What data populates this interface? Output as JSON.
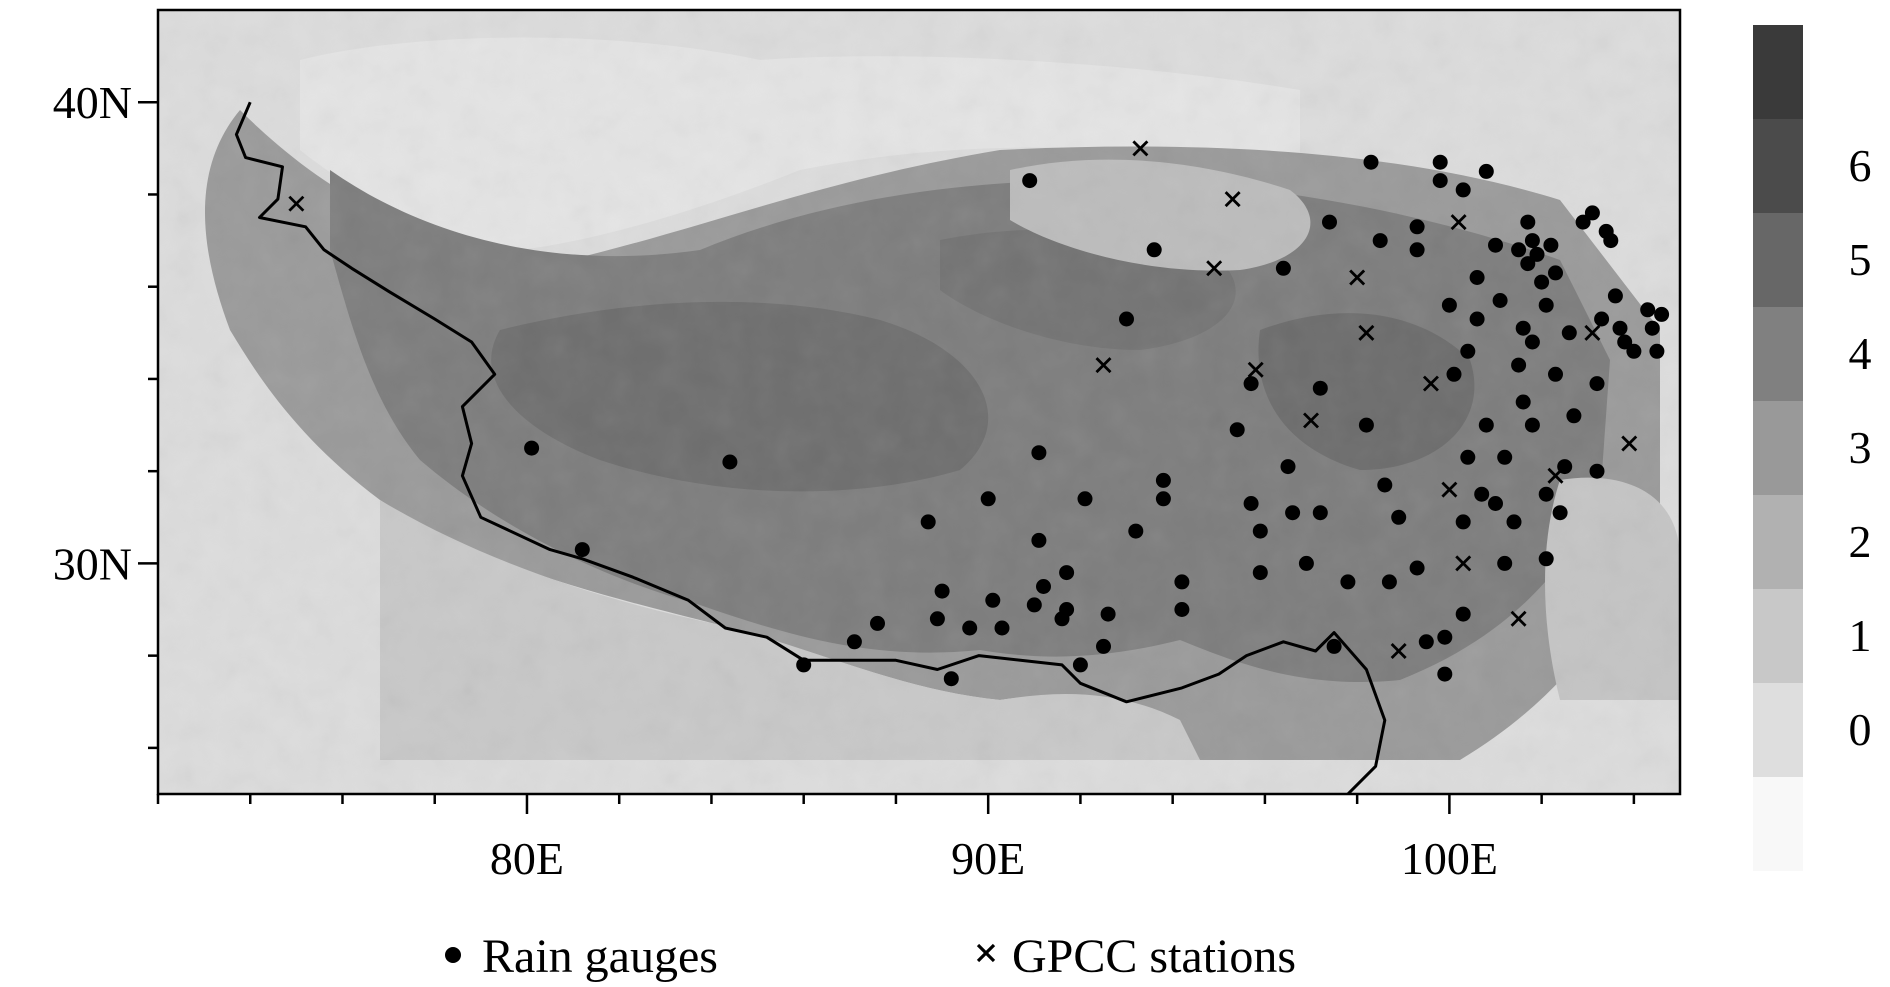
{
  "map": {
    "bounds": {
      "lon": [
        72,
        105
      ],
      "lat": [
        25,
        42
      ]
    },
    "lat_ticks": [
      {
        "value": 30,
        "label": "30N"
      },
      {
        "value": 40,
        "label": "40N"
      }
    ],
    "lat_minor_ticks": [
      26,
      28,
      32,
      34,
      36,
      38
    ],
    "lon_ticks": [
      {
        "value": 80,
        "label": "80E"
      },
      {
        "value": 90,
        "label": "90E"
      },
      {
        "value": 100,
        "label": "100E"
      }
    ],
    "lon_minor_ticks": [
      72,
      74,
      76,
      78,
      82,
      84,
      86,
      88,
      92,
      94,
      96,
      98,
      102,
      104
    ],
    "boundary": [
      [
        74.0,
        40.0
      ],
      [
        73.7,
        39.3
      ],
      [
        73.9,
        38.8
      ],
      [
        74.7,
        38.6
      ],
      [
        74.6,
        37.9
      ],
      [
        74.2,
        37.5
      ],
      [
        75.2,
        37.3
      ],
      [
        75.6,
        36.8
      ],
      [
        76.2,
        36.4
      ],
      [
        77.0,
        35.9
      ],
      [
        78.0,
        35.3
      ],
      [
        78.8,
        34.8
      ],
      [
        79.3,
        34.1
      ],
      [
        78.6,
        33.4
      ],
      [
        78.8,
        32.6
      ],
      [
        78.6,
        31.9
      ],
      [
        79.0,
        31.0
      ],
      [
        80.5,
        30.3
      ],
      [
        81.2,
        30.1
      ],
      [
        82.3,
        29.7
      ],
      [
        83.5,
        29.2
      ],
      [
        84.3,
        28.6
      ],
      [
        85.2,
        28.4
      ],
      [
        86.0,
        27.9
      ],
      [
        87.0,
        27.9
      ],
      [
        88.0,
        27.9
      ],
      [
        88.9,
        27.7
      ],
      [
        89.8,
        28.0
      ],
      [
        90.7,
        27.9
      ],
      [
        91.6,
        27.8
      ],
      [
        92.0,
        27.4
      ],
      [
        93.0,
        27.0
      ],
      [
        94.2,
        27.3
      ],
      [
        95.0,
        27.6
      ],
      [
        95.6,
        28.0
      ],
      [
        96.4,
        28.3
      ],
      [
        97.1,
        28.1
      ],
      [
        97.5,
        28.5
      ],
      [
        98.2,
        27.7
      ],
      [
        98.6,
        26.6
      ],
      [
        98.4,
        25.6
      ],
      [
        97.8,
        25.0
      ]
    ],
    "rain_gauges": [
      [
        80.1,
        32.5
      ],
      [
        81.2,
        30.3
      ],
      [
        84.4,
        32.2
      ],
      [
        86.0,
        27.8
      ],
      [
        87.1,
        28.3
      ],
      [
        87.6,
        28.7
      ],
      [
        88.7,
        30.9
      ],
      [
        88.9,
        28.8
      ],
      [
        89.0,
        29.4
      ],
      [
        89.2,
        27.5
      ],
      [
        89.6,
        28.6
      ],
      [
        90.0,
        31.4
      ],
      [
        90.1,
        29.2
      ],
      [
        90.3,
        28.6
      ],
      [
        90.9,
        38.3
      ],
      [
        91.1,
        32.4
      ],
      [
        91.1,
        30.5
      ],
      [
        91.2,
        29.5
      ],
      [
        91.0,
        29.1
      ],
      [
        91.7,
        29.8
      ],
      [
        91.7,
        29.0
      ],
      [
        91.6,
        28.8
      ],
      [
        92.0,
        27.8
      ],
      [
        92.1,
        31.4
      ],
      [
        92.5,
        28.2
      ],
      [
        92.6,
        28.9
      ],
      [
        93.0,
        35.3
      ],
      [
        93.2,
        30.7
      ],
      [
        93.6,
        36.8
      ],
      [
        93.8,
        31.8
      ],
      [
        93.8,
        31.4
      ],
      [
        94.2,
        29.6
      ],
      [
        94.2,
        29.0
      ],
      [
        95.4,
        32.9
      ],
      [
        95.7,
        33.9
      ],
      [
        95.7,
        31.3
      ],
      [
        95.9,
        30.7
      ],
      [
        95.9,
        29.8
      ],
      [
        96.4,
        36.4
      ],
      [
        96.5,
        32.1
      ],
      [
        96.6,
        31.1
      ],
      [
        96.9,
        30.0
      ],
      [
        97.2,
        33.8
      ],
      [
        97.2,
        31.1
      ],
      [
        97.4,
        37.4
      ],
      [
        97.5,
        28.2
      ],
      [
        97.8,
        29.6
      ],
      [
        98.2,
        33.0
      ],
      [
        98.3,
        38.7
      ],
      [
        98.5,
        37.0
      ],
      [
        98.6,
        31.7
      ],
      [
        98.7,
        29.6
      ],
      [
        98.9,
        31.0
      ],
      [
        99.3,
        37.3
      ],
      [
        99.3,
        36.8
      ],
      [
        99.3,
        29.9
      ],
      [
        99.5,
        28.3
      ],
      [
        99.8,
        38.7
      ],
      [
        99.8,
        38.3
      ],
      [
        99.9,
        28.4
      ],
      [
        99.9,
        27.6
      ],
      [
        100.0,
        35.6
      ],
      [
        100.1,
        34.1
      ],
      [
        100.4,
        34.6
      ],
      [
        100.3,
        38.1
      ],
      [
        100.3,
        30.9
      ],
      [
        100.3,
        28.9
      ],
      [
        100.4,
        32.3
      ],
      [
        100.6,
        36.2
      ],
      [
        100.6,
        35.3
      ],
      [
        100.7,
        31.5
      ],
      [
        100.8,
        38.5
      ],
      [
        100.8,
        33.0
      ],
      [
        101.0,
        36.9
      ],
      [
        101.0,
        31.3
      ],
      [
        101.1,
        35.7
      ],
      [
        101.2,
        32.3
      ],
      [
        101.2,
        30.0
      ],
      [
        101.4,
        30.9
      ],
      [
        101.5,
        36.8
      ],
      [
        101.5,
        34.3
      ],
      [
        101.6,
        35.1
      ],
      [
        101.6,
        33.5
      ],
      [
        101.7,
        37.4
      ],
      [
        101.7,
        36.5
      ],
      [
        101.8,
        37.0
      ],
      [
        101.8,
        34.8
      ],
      [
        101.8,
        33.0
      ],
      [
        101.9,
        36.7
      ],
      [
        102.0,
        36.1
      ],
      [
        102.1,
        35.6
      ],
      [
        102.1,
        31.5
      ],
      [
        102.1,
        30.1
      ],
      [
        102.2,
        36.9
      ],
      [
        102.3,
        36.3
      ],
      [
        102.3,
        34.1
      ],
      [
        102.4,
        31.1
      ],
      [
        102.5,
        32.1
      ],
      [
        102.6,
        35.0
      ],
      [
        102.7,
        33.2
      ],
      [
        102.9,
        37.4
      ],
      [
        103.1,
        37.6
      ],
      [
        103.2,
        33.9
      ],
      [
        103.2,
        32.0
      ],
      [
        103.3,
        35.3
      ],
      [
        103.4,
        37.2
      ],
      [
        103.5,
        37.0
      ],
      [
        103.6,
        35.8
      ],
      [
        103.7,
        35.1
      ],
      [
        103.8,
        34.8
      ],
      [
        104.0,
        34.6
      ],
      [
        104.3,
        35.5
      ],
      [
        104.4,
        35.1
      ],
      [
        104.5,
        34.6
      ],
      [
        104.6,
        35.4
      ]
    ],
    "gpcc_stations": [
      [
        75.0,
        37.8
      ],
      [
        92.5,
        34.3
      ],
      [
        93.3,
        39.0
      ],
      [
        94.9,
        36.4
      ],
      [
        95.3,
        37.9
      ],
      [
        95.8,
        34.2
      ],
      [
        97.0,
        33.1
      ],
      [
        98.0,
        36.2
      ],
      [
        98.2,
        35.0
      ],
      [
        98.9,
        28.1
      ],
      [
        99.6,
        33.9
      ],
      [
        100.0,
        31.6
      ],
      [
        100.2,
        37.4
      ],
      [
        100.3,
        30.0
      ],
      [
        101.5,
        28.8
      ],
      [
        102.3,
        31.9
      ],
      [
        103.1,
        35.0
      ],
      [
        103.9,
        32.6
      ]
    ]
  },
  "colorbar": {
    "levels": [
      0,
      1,
      2,
      3,
      4,
      5,
      6
    ],
    "colors": [
      "#dedede",
      "#c8c8c8",
      "#b1b1b1",
      "#999999",
      "#808080",
      "#676767",
      "#4b4b4b",
      "#3a3a3a"
    ]
  },
  "legend": {
    "gauges_label": "Rain gauges",
    "gpcc_label": "GPCC stations"
  }
}
